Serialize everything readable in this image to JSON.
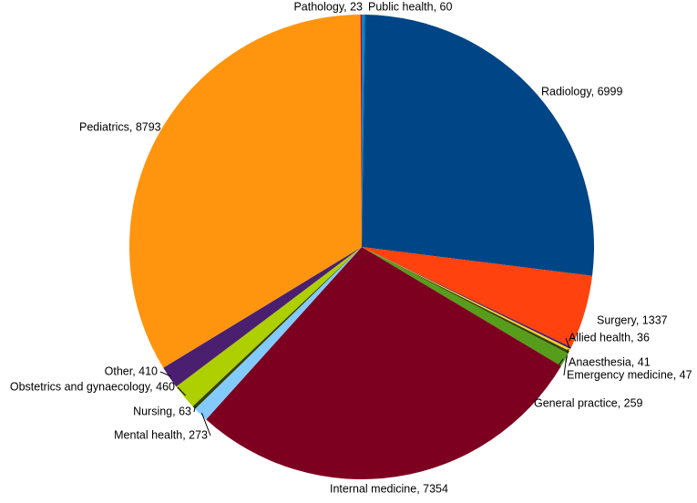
{
  "chart_data": {
    "type": "pie",
    "values": [
      60,
      6999,
      1337,
      36,
      41,
      47,
      259,
      7354,
      273,
      63,
      460,
      410,
      8793,
      23
    ],
    "value_labels": [
      "Public health, 60",
      "Radiology, 6999",
      "Surgery, 1337",
      "Allied health, 36",
      "Anaesthesia, 41",
      "Emergency medicine, 47",
      "General practice, 259",
      "Internal medicine, 7354",
      "Mental health, 273",
      "Nursing, 63",
      "Obstetrics and gynaecology, 460",
      "Other, 410",
      "Pediatrics, 8793",
      "Pathology, 23"
    ],
    "colors": [
      "#0084d1",
      "#004586",
      "#ff420e",
      "#4b1f6f",
      "#ffd320",
      "#314004",
      "#579d1c",
      "#7e0021",
      "#83caff",
      "#314004",
      "#aecf00",
      "#4b1f6f",
      "#ff950e",
      "#c5000b"
    ]
  }
}
